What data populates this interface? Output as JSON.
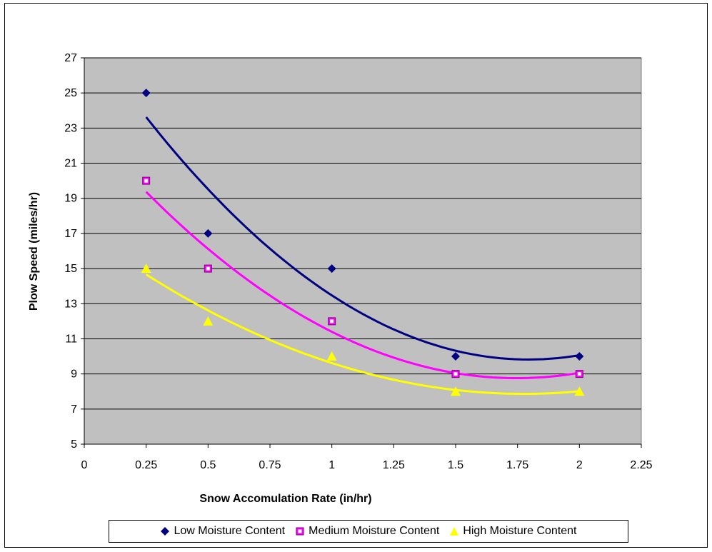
{
  "chart_data": {
    "type": "scatter",
    "xlabel": "Snow Accomulation Rate (in/hr)",
    "ylabel": "Plow Speed (miles/hr)",
    "xlim": [
      0,
      2.25
    ],
    "ylim": [
      5,
      27
    ],
    "x_ticks": [
      "0",
      "0.25",
      "0.5",
      "0.75",
      "1",
      "1.25",
      "1.5",
      "1.75",
      "2",
      "2.25"
    ],
    "y_ticks": [
      "5",
      "7",
      "9",
      "11",
      "13",
      "15",
      "17",
      "19",
      "21",
      "23",
      "25",
      "27"
    ],
    "grid": "horizontal",
    "plot_background": "#c0c0c0",
    "legend_position": "bottom",
    "trendline": "polynomial",
    "series": [
      {
        "name": "Low Moisture Content",
        "marker": "diamond",
        "color": "#000080",
        "x": [
          0.25,
          0.5,
          1,
          1.5,
          2
        ],
        "y": [
          25,
          17,
          15,
          10,
          10
        ]
      },
      {
        "name": "Medium Moisture Content",
        "marker": "square",
        "color": "#ff00ff",
        "x": [
          0.25,
          0.5,
          1,
          1.5,
          2
        ],
        "y": [
          20,
          15,
          12,
          9,
          9
        ]
      },
      {
        "name": "High Moisture Content",
        "marker": "triangle",
        "color": "#ffff00",
        "x": [
          0.25,
          0.5,
          1,
          1.5,
          2
        ],
        "y": [
          15,
          12,
          10,
          8,
          8
        ]
      }
    ]
  }
}
